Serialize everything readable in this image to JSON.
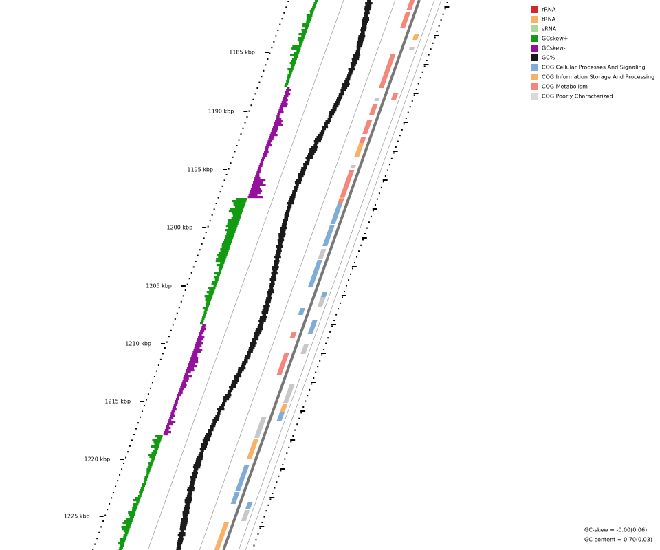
{
  "legend": {
    "items": [
      {
        "label": "rRNA",
        "color": "#d62728"
      },
      {
        "label": "tRNA",
        "color": "#f7b267"
      },
      {
        "label": "sRNA",
        "color": "#a6d99b"
      },
      {
        "label": "GCskew+",
        "color": "#139a13"
      },
      {
        "label": "GCskew-",
        "color": "#93119b"
      },
      {
        "label": "GC%",
        "color": "#1a1a1a"
      },
      {
        "label": "COG Cellular Processes And Signaling",
        "color": "#7fadd6"
      },
      {
        "label": "COG Information Storage And Processing",
        "color": "#f7b267"
      },
      {
        "label": "COG Metabolism",
        "color": "#f5867a"
      },
      {
        "label": "COG Poorly Characterized",
        "color": "#d9d9d9"
      }
    ]
  },
  "axis": {
    "labels": [
      "1185 kbp",
      "1190 kbp",
      "1195 kbp",
      "1200 kbp",
      "1205 kbp",
      "1210 kbp",
      "1215 kbp",
      "1220 kbp",
      "1225 kbp"
    ]
  },
  "stats": {
    "gc_skew": "GC-skew = -0.00(0.06)",
    "gc_content": "GC-content = 0.70(0.03)"
  }
}
